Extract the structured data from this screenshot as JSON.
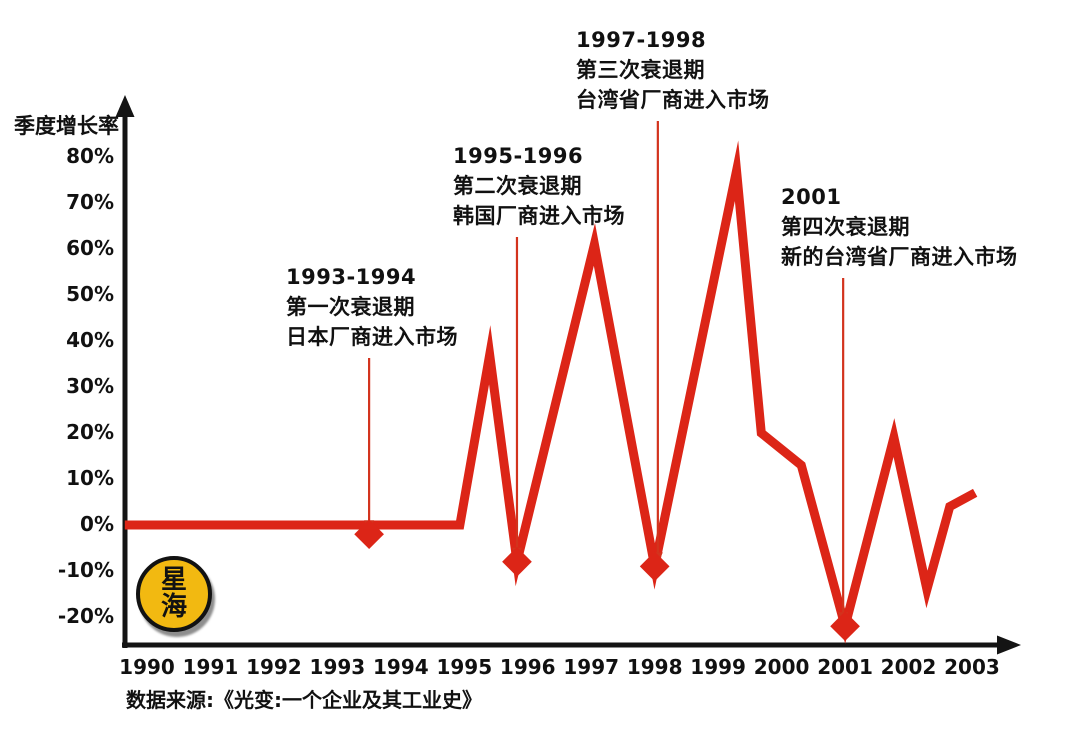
{
  "colors": {
    "line_red": "#dc2517",
    "arrow_red": "#d3331d",
    "axis_black": "#141414",
    "text_black": "#111111",
    "logo_yellow": "#f2b911",
    "background": "#ffffff"
  },
  "source": "数据来源:《光变:一个企业及其工业史》",
  "logo": {
    "chars": [
      "星",
      "海"
    ]
  },
  "chart_data": {
    "type": "line",
    "title": "",
    "ylabel": "季度增长率",
    "xlabel": "",
    "grid": false,
    "legend": false,
    "xlim": [
      1989.6,
      2003.9
    ],
    "ylim": [
      -25,
      85
    ],
    "x_tick_values": [
      1990,
      1991,
      1992,
      1993,
      1994,
      1995,
      1996,
      1997,
      1998,
      1999,
      2000,
      2001,
      2002,
      2003
    ],
    "x_tick_labels": [
      "1990",
      "1991",
      "1992",
      "1993",
      "1994",
      "1995",
      "1996",
      "1997",
      "1998",
      "1999",
      "2000",
      "2001",
      "2002",
      "2003"
    ],
    "y_tick_values": [
      80,
      70,
      60,
      50,
      40,
      30,
      20,
      10,
      0,
      -10,
      -20
    ],
    "y_tick_labels": [
      "80%",
      "70%",
      "60%",
      "50%",
      "40%",
      "30%",
      "20%",
      "10%",
      "0%",
      "-10%",
      "-20%"
    ],
    "series": [
      {
        "name": "季度增长率",
        "x": [
          1989.65,
          1994.93,
          1995.4,
          1995.83,
          1997.05,
          1998.0,
          1999.29,
          1999.68,
          2000.31,
          2001.0,
          2001.77,
          2002.29,
          2002.65,
          2003.05
        ],
        "y": [
          0,
          0,
          37,
          -8,
          61,
          -9,
          77,
          20,
          13,
          -22,
          19,
          -14,
          4,
          7
        ]
      }
    ],
    "markers": [
      {
        "x": 1993.5,
        "y": -2
      },
      {
        "x": 1995.83,
        "y": -8
      },
      {
        "x": 1998.0,
        "y": -9
      },
      {
        "x": 2001.0,
        "y": -22
      }
    ],
    "annotations": [
      {
        "lines": [
          "1993-1994",
          "第一次衰退期",
          "日本厂商进入市场"
        ],
        "arrow_x": 1993.5,
        "target_y": -2,
        "text_left": 286,
        "text_top": 262
      },
      {
        "lines": [
          "1995-1996",
          "第二次衰退期",
          "韩国厂商进入市场"
        ],
        "arrow_x": 1995.83,
        "target_y": -8,
        "text_left": 453,
        "text_top": 141
      },
      {
        "lines": [
          "1997-1998",
          "第三次衰退期",
          "台湾省厂商进入市场"
        ],
        "arrow_x": 1998.05,
        "target_y": -9,
        "text_left": 576,
        "text_top": 25
      },
      {
        "lines": [
          "2001",
          "第四次衰退期",
          "新的台湾省厂商进入市场"
        ],
        "arrow_x": 2000.97,
        "target_y": -22,
        "text_left": 781,
        "text_top": 182
      }
    ]
  }
}
